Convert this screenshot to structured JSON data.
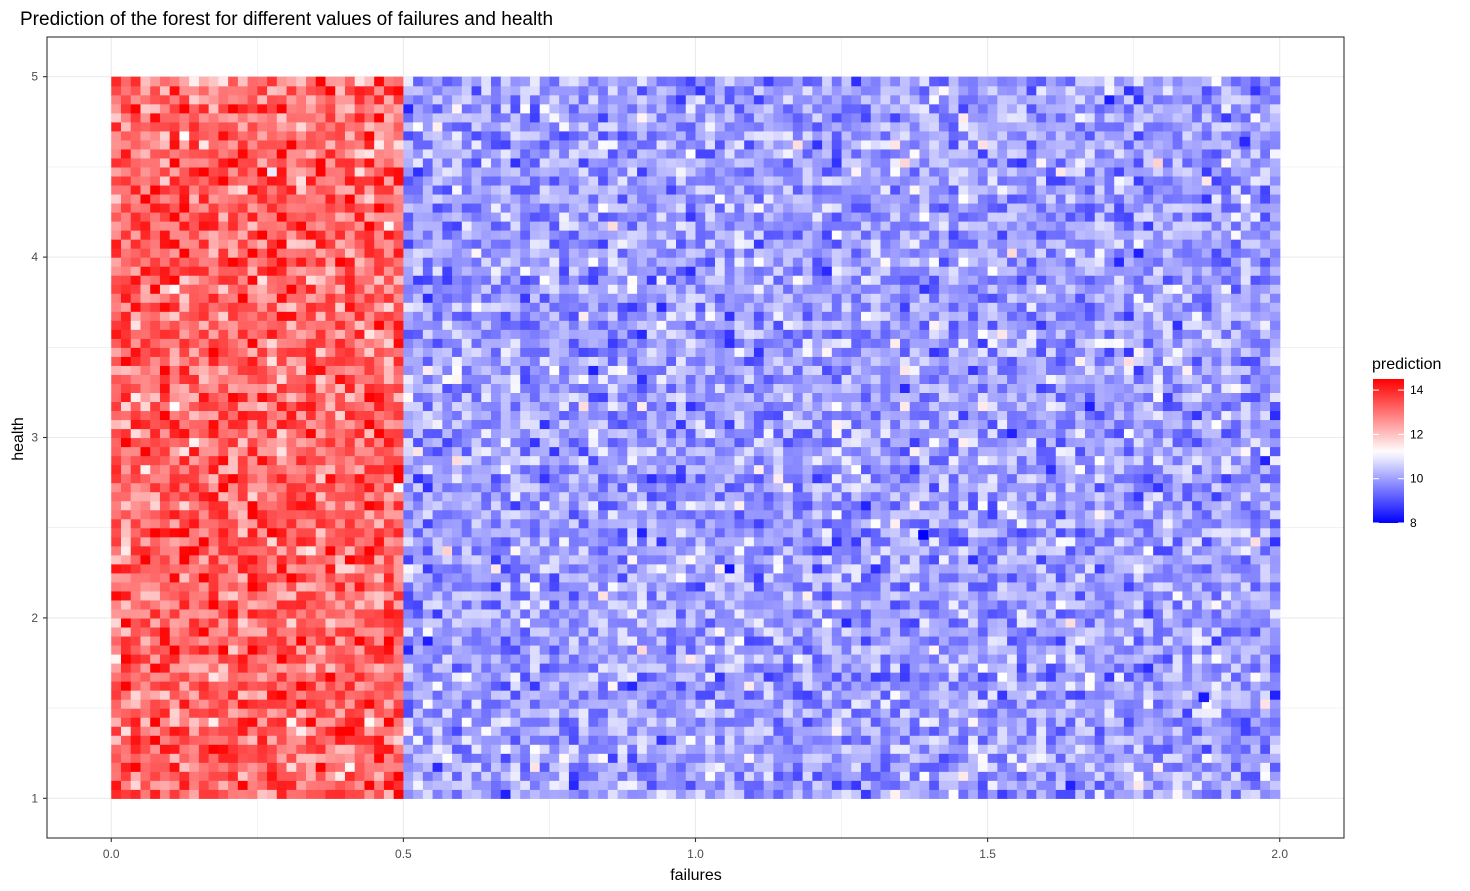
{
  "chart_data": {
    "type": "heatmap",
    "title": "Prediction of the forest for different values of failures and health",
    "xlabel": "failures",
    "ylabel": "health",
    "xlim": [
      -0.11,
      2.11
    ],
    "ylim": [
      0.78,
      5.22
    ],
    "x_ticks": [
      0.0,
      0.5,
      1.0,
      1.5,
      2.0
    ],
    "x_tick_labels": [
      "0.0",
      "0.5",
      "1.0",
      "1.5",
      "2.0"
    ],
    "y_ticks": [
      1,
      2,
      3,
      4,
      5
    ],
    "y_tick_labels": [
      "1",
      "2",
      "3",
      "4",
      "5"
    ],
    "grid": true,
    "x_range": [
      0,
      2
    ],
    "y_range": [
      1,
      5
    ],
    "x_split": 0.5,
    "region_means": {
      "low_failures": 13.2,
      "high_failures": 10.0
    },
    "value_range": [
      8,
      14.5
    ],
    "notable_cells": [
      {
        "x": 1.39,
        "y": 2.46,
        "value": 8.0
      },
      {
        "x": 1.87,
        "y": 1.56,
        "value": 8.3
      },
      {
        "x": 1.94,
        "y": 4.64,
        "value": 8.5
      }
    ],
    "legend": {
      "title": "prediction",
      "position": "right",
      "ticks": [
        14,
        12,
        10,
        8
      ],
      "tick_labels": [
        "14",
        "12",
        "10",
        "8"
      ],
      "low_color": "#0000ff",
      "mid_color": "#ffffff",
      "high_color": "#ff0000",
      "midpoint": 11.2
    }
  }
}
